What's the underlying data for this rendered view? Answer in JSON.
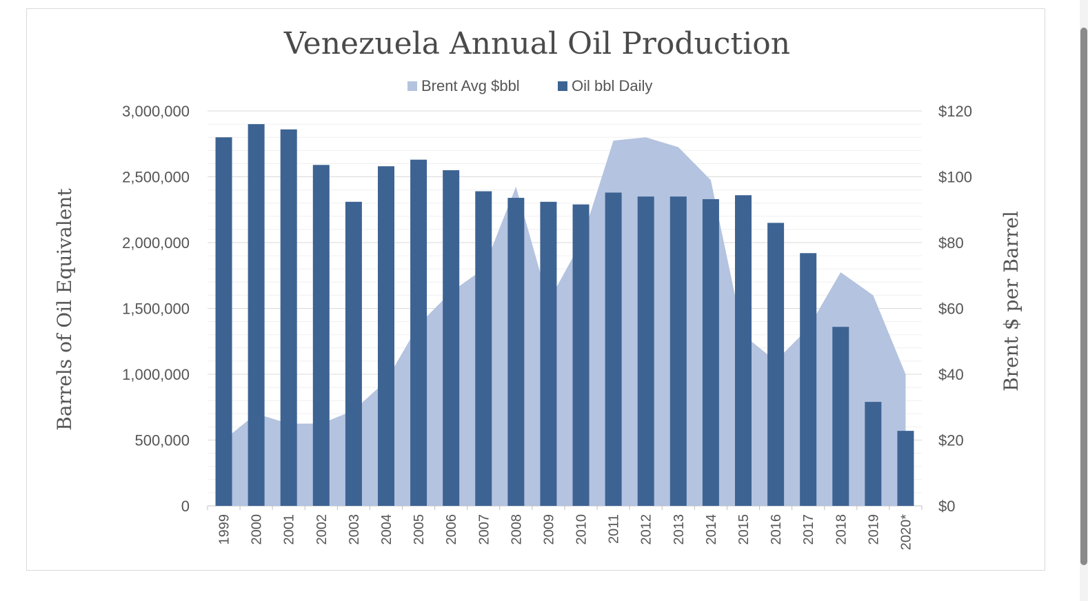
{
  "chart_data": {
    "type": "bar",
    "title": "Venezuela Annual Oil Production",
    "ylabel": "Barrels of Oil Equivalent",
    "y2label": "Brent $ per Barrel",
    "ylim": [
      0,
      3000000
    ],
    "y2lim": [
      0,
      120
    ],
    "yticks": [
      "0",
      "500,000",
      "1,000,000",
      "1,500,000",
      "2,000,000",
      "2,500,000",
      "3,000,000"
    ],
    "y2ticks": [
      "$0",
      "$20",
      "$40",
      "$60",
      "$80",
      "$100",
      "$120"
    ],
    "legend_position": "top-center",
    "grid": true,
    "categories": [
      "1999",
      "2000",
      "2001",
      "2002",
      "2003",
      "2004",
      "2005",
      "2006",
      "2007",
      "2008",
      "2009",
      "2010",
      "2011",
      "2012",
      "2013",
      "2014",
      "2015",
      "2016",
      "2017",
      "2018",
      "2019",
      "2020*"
    ],
    "series": [
      {
        "name": "Brent Avg $bbl",
        "type": "area",
        "axis": "right",
        "color": "#b4c3df",
        "values": [
          20,
          28,
          25,
          25,
          29,
          38,
          55,
          65,
          72,
          97,
          62,
          80,
          111,
          112,
          109,
          99,
          52,
          44,
          54,
          71,
          64,
          40
        ]
      },
      {
        "name": "Oil bbl Daily",
        "type": "bar",
        "axis": "left",
        "color": "#3d6393",
        "values": [
          2800000,
          2900000,
          2860000,
          2590000,
          2310000,
          2580000,
          2630000,
          2550000,
          2390000,
          2340000,
          2310000,
          2290000,
          2380000,
          2350000,
          2350000,
          2330000,
          2360000,
          2150000,
          1920000,
          1360000,
          790000,
          570000
        ]
      }
    ]
  }
}
